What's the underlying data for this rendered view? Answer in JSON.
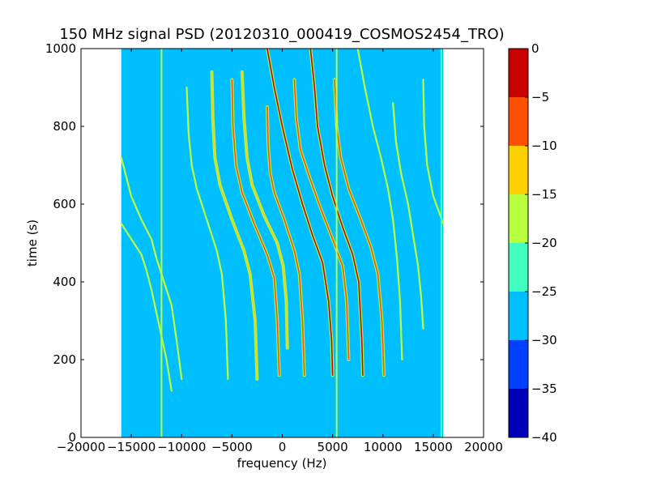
{
  "chart_data": {
    "type": "heatmap",
    "title": "150 MHz signal PSD (20120310_000419_COSMOS2454_TRO)",
    "xlabel": "frequency (Hz)",
    "ylabel": "time (s)",
    "xlim": [
      -20000,
      20000
    ],
    "ylim": [
      0,
      1000
    ],
    "xticks": [
      -20000,
      -15000,
      -10000,
      -5000,
      0,
      5000,
      10000,
      15000,
      20000
    ],
    "xtick_labels": [
      "−20000",
      "−15000",
      "−10000",
      "−5000",
      "0",
      "5000",
      "10000",
      "15000",
      "20000"
    ],
    "yticks": [
      0,
      200,
      400,
      600,
      800,
      1000
    ],
    "ytick_labels": [
      "0",
      "200",
      "400",
      "600",
      "800",
      "1000"
    ],
    "data_extent_x": [
      -16000,
      16000
    ],
    "data_extent_y": [
      0,
      1000
    ],
    "background_level": -27.5,
    "colorbar": {
      "min": -40,
      "max": 0,
      "levels": [
        -40,
        -35,
        -30,
        -25,
        -20,
        -15,
        -10,
        -5,
        0
      ],
      "tick_labels": [
        "−40",
        "−35",
        "−30",
        "−25",
        "−20",
        "−15",
        "−10",
        "−5",
        "0"
      ],
      "colors": [
        "#0000b8",
        "#0040ff",
        "#00bfff",
        "#40ffbf",
        "#b8ff40",
        "#ffd000",
        "#ff5000",
        "#c80000"
      ]
    },
    "traces": [
      {
        "points": [
          [
            -16000,
            720
          ],
          [
            -15000,
            620
          ],
          [
            -14000,
            560
          ],
          [
            -13000,
            510
          ],
          [
            -12500,
            460
          ],
          [
            -12000,
            420
          ],
          [
            -11500,
            380
          ],
          [
            -11000,
            340
          ],
          [
            -10500,
            250
          ],
          [
            -10000,
            150
          ]
        ],
        "level": -17.5
      },
      {
        "points": [
          [
            -16000,
            550
          ],
          [
            -15000,
            510
          ],
          [
            -14000,
            470
          ],
          [
            -13500,
            430
          ],
          [
            -13000,
            380
          ],
          [
            -12500,
            320
          ],
          [
            -12000,
            260
          ],
          [
            -11500,
            200
          ],
          [
            -11000,
            120
          ]
        ],
        "level": -17.5
      },
      {
        "points": [
          [
            -9500,
            900
          ],
          [
            -9300,
            780
          ],
          [
            -9000,
            700
          ],
          [
            -8500,
            640
          ],
          [
            -7500,
            560
          ],
          [
            -6500,
            480
          ],
          [
            -6000,
            420
          ],
          [
            -5600,
            300
          ],
          [
            -5400,
            150
          ]
        ],
        "level": -17.5
      },
      {
        "points": [
          [
            -7000,
            940
          ],
          [
            -6900,
            820
          ],
          [
            -6700,
            720
          ],
          [
            -6200,
            650
          ],
          [
            -5000,
            560
          ],
          [
            -3800,
            480
          ],
          [
            -3200,
            420
          ],
          [
            -2700,
            300
          ],
          [
            -2500,
            150
          ]
        ],
        "level": -12.5
      },
      {
        "points": [
          [
            -5000,
            920
          ],
          [
            -4900,
            800
          ],
          [
            -4600,
            700
          ],
          [
            -4000,
            630
          ],
          [
            -2800,
            550
          ],
          [
            -1500,
            470
          ],
          [
            -800,
            410
          ],
          [
            -500,
            300
          ],
          [
            -300,
            160
          ]
        ],
        "level": -7.5
      },
      {
        "points": [
          [
            -1500,
            850
          ],
          [
            -1400,
            750
          ],
          [
            -1200,
            680
          ],
          [
            -800,
            630
          ],
          [
            200,
            560
          ],
          [
            1200,
            480
          ],
          [
            1700,
            420
          ],
          [
            2000,
            300
          ],
          [
            2200,
            160
          ]
        ],
        "level": -7.5
      },
      {
        "points": [
          [
            -4000,
            940
          ],
          [
            -3800,
            820
          ],
          [
            -3500,
            720
          ],
          [
            -3000,
            650
          ],
          [
            -1800,
            570
          ],
          [
            -500,
            500
          ],
          [
            100,
            440
          ],
          [
            400,
            350
          ],
          [
            500,
            230
          ]
        ],
        "level": -12.5
      },
      {
        "points": [
          [
            -1500,
            1000
          ],
          [
            -800,
            900
          ],
          [
            0,
            800
          ],
          [
            1000,
            690
          ],
          [
            2000,
            600
          ],
          [
            3000,
            520
          ],
          [
            4000,
            450
          ],
          [
            4600,
            350
          ],
          [
            4900,
            250
          ],
          [
            5000,
            160
          ]
        ],
        "level": -2.5
      },
      {
        "points": [
          [
            2800,
            1000
          ],
          [
            3200,
            900
          ],
          [
            3500,
            800
          ],
          [
            4200,
            700
          ],
          [
            5000,
            620
          ],
          [
            6000,
            540
          ],
          [
            7000,
            470
          ],
          [
            7600,
            400
          ],
          [
            7900,
            250
          ],
          [
            8000,
            160
          ]
        ],
        "level": -2.5
      },
      {
        "points": [
          [
            5200,
            920
          ],
          [
            5400,
            800
          ],
          [
            5800,
            720
          ],
          [
            6600,
            640
          ],
          [
            7800,
            560
          ],
          [
            8800,
            490
          ],
          [
            9500,
            420
          ],
          [
            9900,
            300
          ],
          [
            10100,
            160
          ]
        ],
        "level": -7.5
      },
      {
        "points": [
          [
            1200,
            920
          ],
          [
            1400,
            820
          ],
          [
            1800,
            740
          ],
          [
            2700,
            670
          ],
          [
            3800,
            590
          ],
          [
            5000,
            510
          ],
          [
            6000,
            440
          ],
          [
            6400,
            350
          ],
          [
            6600,
            200
          ]
        ],
        "level": -7.5
      },
      {
        "points": [
          [
            14000,
            920
          ],
          [
            14100,
            800
          ],
          [
            14400,
            700
          ],
          [
            15000,
            620
          ],
          [
            16000,
            550
          ]
        ],
        "level": -17.5
      },
      {
        "points": [
          [
            11000,
            860
          ],
          [
            11300,
            760
          ],
          [
            11800,
            680
          ],
          [
            12500,
            600
          ],
          [
            13000,
            520
          ],
          [
            13500,
            440
          ],
          [
            13800,
            360
          ],
          [
            14000,
            280
          ]
        ],
        "level": -17.5
      },
      {
        "points": [
          [
            7500,
            1000
          ],
          [
            8200,
            900
          ],
          [
            9000,
            800
          ],
          [
            9800,
            720
          ],
          [
            10500,
            640
          ],
          [
            11000,
            560
          ],
          [
            11400,
            460
          ],
          [
            11700,
            350
          ],
          [
            11900,
            200
          ]
        ],
        "level": -17.5
      }
    ],
    "vertical_lines": [
      {
        "x": -12000,
        "level": -17.5
      },
      {
        "x": 5400,
        "level": -17.5
      },
      {
        "x": 15800,
        "level": -22.5
      }
    ]
  }
}
